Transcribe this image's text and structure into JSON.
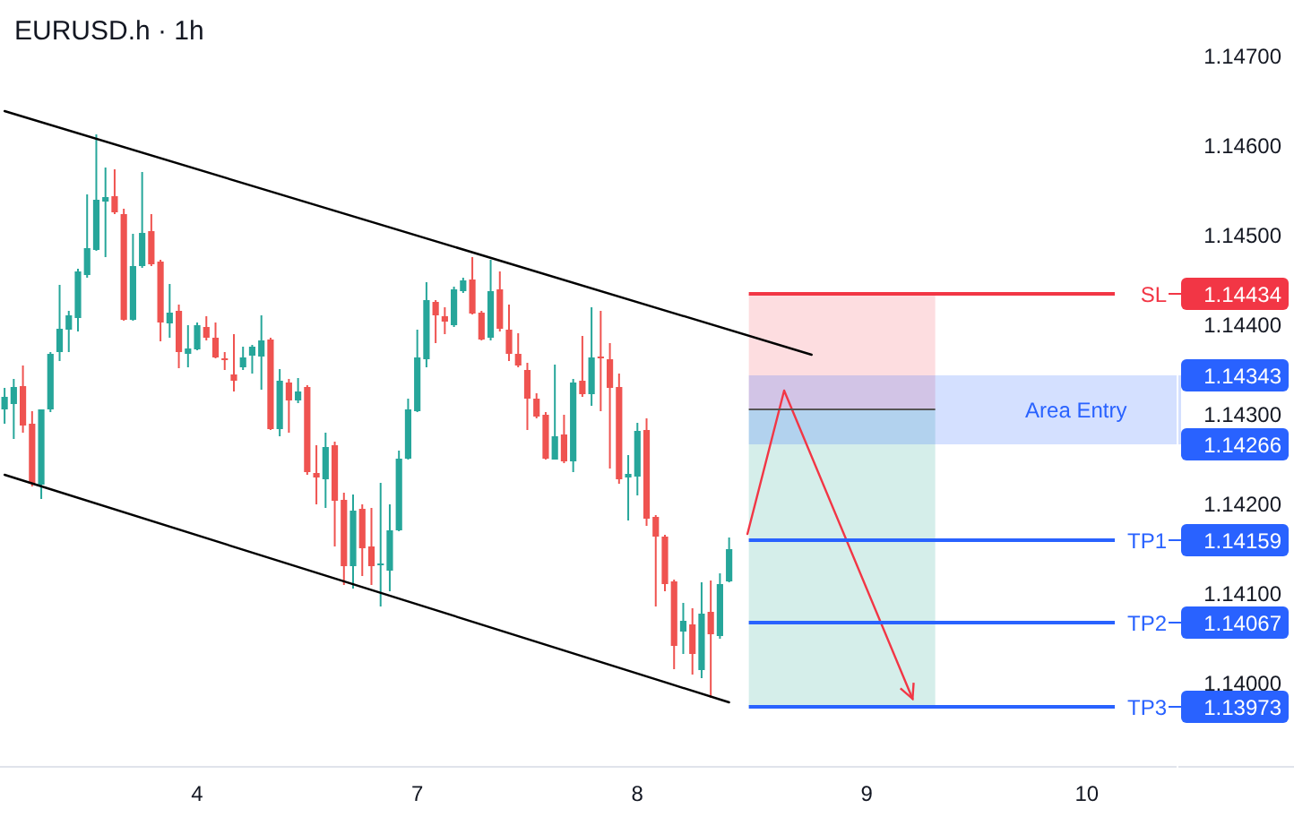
{
  "chart_data": {
    "type": "candlestick",
    "title": "EURUSD.h · 1h",
    "categories": [
      null,
      null,
      null,
      null,
      null,
      null,
      null,
      null,
      null,
      null,
      null,
      null,
      null,
      null,
      null,
      null,
      null,
      null,
      null,
      null,
      null,
      "4",
      null,
      null,
      null,
      null,
      null,
      null,
      null,
      null,
      null,
      null,
      null,
      null,
      null,
      null,
      null,
      null,
      null,
      null,
      null,
      null,
      null,
      null,
      null,
      "7",
      null,
      null,
      null,
      null,
      null,
      null,
      null,
      null,
      null,
      null,
      null,
      null,
      null,
      null,
      null,
      null,
      null,
      null,
      null,
      null,
      null,
      null,
      null,
      "8",
      null,
      null,
      null,
      null,
      null,
      null,
      null,
      null,
      null,
      null,
      null,
      null,
      null,
      null,
      null,
      null,
      null,
      null,
      null,
      null,
      null,
      null,
      null,
      null,
      "9",
      null,
      null,
      null,
      null,
      null,
      null,
      null,
      null,
      null,
      null,
      null,
      null,
      null,
      null,
      null,
      null,
      null,
      null,
      null,
      null,
      null,
      null,
      null,
      "10",
      null,
      null,
      null,
      null,
      null,
      null,
      null,
      null,
      null
    ],
    "ohlc": [
      [
        1.14305,
        1.14329,
        1.14289,
        1.14319
      ],
      [
        1.14311,
        1.14339,
        1.14272,
        1.1433
      ],
      [
        1.14331,
        1.14354,
        1.14279,
        1.14287
      ],
      [
        1.14289,
        1.14303,
        1.14219,
        1.14222
      ],
      [
        1.14221,
        1.14305,
        1.14205,
        1.14305
      ],
      [
        1.14305,
        1.14369,
        1.14302,
        1.14367
      ],
      [
        1.14369,
        1.14444,
        1.14359,
        1.14395
      ],
      [
        1.14394,
        1.14415,
        1.14369,
        1.1441
      ],
      [
        1.14407,
        1.14462,
        1.14392,
        1.14459
      ],
      [
        1.14455,
        1.14545,
        1.14452,
        1.14485
      ],
      [
        1.14483,
        1.14612,
        1.14482,
        1.14539
      ],
      [
        1.14537,
        1.14575,
        1.14475,
        1.14542
      ],
      [
        1.14543,
        1.14573,
        1.14523,
        1.14525
      ],
      [
        1.14523,
        1.14529,
        1.14404,
        1.14405
      ],
      [
        1.14405,
        1.14501,
        1.14404,
        1.14465
      ],
      [
        1.14465,
        1.1457,
        1.14463,
        1.14502
      ],
      [
        1.14504,
        1.14523,
        1.14465,
        1.14467
      ],
      [
        1.1447,
        1.14472,
        1.14381,
        1.14402
      ],
      [
        1.14401,
        1.14445,
        1.14385,
        1.14413
      ],
      [
        1.14415,
        1.14422,
        1.14351,
        1.14369
      ],
      [
        1.14367,
        1.14399,
        1.14352,
        1.14373
      ],
      [
        1.14372,
        1.14402,
        1.14371,
        1.14399
      ],
      [
        1.14397,
        1.14409,
        1.14382,
        1.14385
      ],
      [
        1.14385,
        1.14402,
        1.14362,
        1.14363
      ],
      [
        1.14362,
        1.14369,
        1.14349,
        1.1436
      ],
      [
        1.14344,
        1.14389,
        1.14325,
        1.14337
      ],
      [
        1.14352,
        1.14375,
        1.14349,
        1.14363
      ],
      [
        1.14365,
        1.14377,
        1.14345,
        1.14375
      ],
      [
        1.14364,
        1.1441,
        1.14327,
        1.14382
      ],
      [
        1.14383,
        1.14385,
        1.14282,
        1.14283
      ],
      [
        1.14283,
        1.1435,
        1.14275,
        1.14337
      ],
      [
        1.14335,
        1.14339,
        1.14279,
        1.14315
      ],
      [
        1.14315,
        1.1434,
        1.14312,
        1.14325
      ],
      [
        1.1433,
        1.14332,
        1.14232,
        1.14235
      ],
      [
        1.14234,
        1.14265,
        1.14199,
        1.14229
      ],
      [
        1.14227,
        1.14279,
        1.14195,
        1.14263
      ],
      [
        1.14265,
        1.14269,
        1.14152,
        1.14203
      ],
      [
        1.14204,
        1.14212,
        1.14109,
        1.1413
      ],
      [
        1.1413,
        1.1421,
        1.14105,
        1.14192
      ],
      [
        1.14194,
        1.14199,
        1.14119,
        1.1415
      ],
      [
        1.14152,
        1.14195,
        1.14109,
        1.1413
      ],
      [
        1.14131,
        1.14223,
        1.14085,
        1.14133
      ],
      [
        1.14125,
        1.14199,
        1.14102,
        1.1417
      ],
      [
        1.1417,
        1.14259,
        1.14169,
        1.1425
      ],
      [
        1.1425,
        1.14317,
        1.14249,
        1.14305
      ],
      [
        1.14303,
        1.14394,
        1.14302,
        1.14363
      ],
      [
        1.14361,
        1.14447,
        1.14352,
        1.14427
      ],
      [
        1.14425,
        1.14427,
        1.14379,
        1.1441
      ],
      [
        1.14409,
        1.14419,
        1.14389,
        1.14403
      ],
      [
        1.14399,
        1.14442,
        1.14397,
        1.14439
      ],
      [
        1.14437,
        1.14452,
        1.14435,
        1.14449
      ],
      [
        1.1445,
        1.14475,
        1.14411,
        1.14412
      ],
      [
        1.14413,
        1.14415,
        1.14382,
        1.14383
      ],
      [
        1.14385,
        1.14472,
        1.14382,
        1.14437
      ],
      [
        1.14439,
        1.14459,
        1.14392,
        1.14395
      ],
      [
        1.14394,
        1.14422,
        1.14359,
        1.14367
      ],
      [
        1.14367,
        1.1439,
        1.14352,
        1.14354
      ],
      [
        1.14349,
        1.14357,
        1.14282,
        1.14317
      ],
      [
        1.14317,
        1.14323,
        1.14295,
        1.14297
      ],
      [
        1.14299,
        1.14302,
        1.14249,
        1.1425
      ],
      [
        1.14249,
        1.14355,
        1.14249,
        1.14275
      ],
      [
        1.14277,
        1.14299,
        1.14245,
        1.14247
      ],
      [
        1.14247,
        1.14339,
        1.14235,
        1.14335
      ],
      [
        1.14337,
        1.14387,
        1.14319,
        1.14322
      ],
      [
        1.14322,
        1.14419,
        1.14309,
        1.14363
      ],
      [
        1.14364,
        1.14415,
        1.14303,
        1.14363
      ],
      [
        1.14361,
        1.14379,
        1.14239,
        1.14329
      ],
      [
        1.1433,
        1.14345,
        1.14222,
        1.14227
      ],
      [
        1.14229,
        1.14254,
        1.14181,
        1.14233
      ],
      [
        1.1423,
        1.1429,
        1.14209,
        1.14281
      ],
      [
        1.14282,
        1.14295,
        1.14175,
        1.14183
      ],
      [
        1.14185,
        1.14187,
        1.14085,
        1.14163
      ],
      [
        1.14163,
        1.14165,
        1.14102,
        1.1411
      ],
      [
        1.14113,
        1.14115,
        1.14015,
        1.14041
      ],
      [
        1.14057,
        1.14089,
        1.14032,
        1.14069
      ],
      [
        1.14065,
        1.14083,
        1.14009,
        1.14032
      ],
      [
        1.14014,
        1.14112,
        1.14005,
        1.14077
      ],
      [
        1.14079,
        1.14114,
        1.13983,
        1.14054
      ],
      [
        1.14052,
        1.14122,
        1.14049,
        1.1411
      ],
      [
        1.14113,
        1.14162,
        1.14112,
        1.14149
      ],
      null,
      null,
      null,
      null,
      null,
      null,
      null,
      null,
      null,
      null,
      null,
      null,
      null,
      null,
      null,
      null,
      null,
      null,
      null,
      null,
      null,
      null,
      null,
      null,
      null,
      null,
      null,
      null,
      null,
      null,
      null,
      null,
      null,
      null,
      null,
      null,
      null,
      null,
      null,
      null,
      null,
      null,
      null,
      null,
      null,
      null,
      null,
      null
    ],
    "colors": [
      "#26a69a",
      "#26a69a",
      "#ef5350",
      "#ef5350",
      "#26a69a",
      "#26a69a",
      "#26a69a",
      "#26a69a",
      "#26a69a",
      "#26a69a",
      "#26a69a",
      "#26a69a",
      "#ef5350",
      "#ef5350",
      "#26a69a",
      "#26a69a",
      "#ef5350",
      "#ef5350",
      "#26a69a",
      "#ef5350",
      "#26a69a",
      "#26a69a",
      "#ef5350",
      "#ef5350",
      "#ef5350",
      "#ef5350",
      "#26a69a",
      "#26a69a",
      "#26a69a",
      "#ef5350",
      "#26a69a",
      "#ef5350",
      "#26a69a",
      "#ef5350",
      "#ef5350",
      "#26a69a",
      "#ef5350",
      "#ef5350",
      "#26a69a",
      "#ef5350",
      "#ef5350",
      "#26a69a",
      "#26a69a",
      "#26a69a",
      "#26a69a",
      "#26a69a",
      "#26a69a",
      "#ef5350",
      "#ef5350",
      "#26a69a",
      "#26a69a",
      "#ef5350",
      "#ef5350",
      "#26a69a",
      "#ef5350",
      "#ef5350",
      "#ef5350",
      "#ef5350",
      "#ef5350",
      "#ef5350",
      "#26a69a",
      "#ef5350",
      "#26a69a",
      "#ef5350",
      "#26a69a",
      "#ef5350",
      "#ef5350",
      "#ef5350",
      "#26a69a",
      "#26a69a",
      "#ef5350",
      "#ef5350",
      "#ef5350",
      "#ef5350",
      "#26a69a",
      "#ef5350",
      "#26a69a",
      "#ef5350",
      "#26a69a",
      "#26a69a",
      null,
      null,
      null,
      null,
      null,
      null,
      null,
      null,
      null,
      null,
      null,
      null,
      null,
      null,
      null,
      null,
      null,
      null,
      null,
      null,
      null,
      null,
      null,
      null,
      null,
      null,
      null,
      null,
      null,
      null,
      null,
      null,
      null,
      null,
      null,
      null,
      null,
      null,
      null,
      null,
      null,
      null,
      null,
      null,
      null,
      null,
      null,
      null
    ],
    "series": [
      {
        "type": "line",
        "values": [
          1.14638,
          null,
          null,
          null,
          null,
          null,
          null,
          null,
          null,
          null,
          null,
          null,
          null,
          null,
          null,
          null,
          null,
          null,
          null,
          null,
          null,
          null,
          null,
          null,
          null,
          null,
          null,
          null,
          null,
          null,
          null,
          null,
          null,
          null,
          null,
          null,
          null,
          null,
          null,
          null,
          null,
          null,
          null,
          null,
          null,
          null,
          null,
          null,
          null,
          null,
          null,
          null,
          null,
          null,
          null,
          null,
          null,
          null,
          null,
          null,
          null,
          null,
          null,
          null,
          null,
          null,
          null,
          null,
          null,
          null,
          null,
          null,
          null,
          null,
          null,
          null,
          null,
          null,
          null,
          null,
          null,
          null,
          null,
          null,
          null,
          null,
          null,
          null,
          1.14366,
          null,
          null,
          null,
          null,
          null,
          null,
          null,
          null,
          null,
          null,
          null,
          null,
          null,
          null,
          null,
          null,
          null,
          null,
          null,
          null,
          null,
          null,
          null,
          null,
          null,
          null,
          null,
          null,
          null,
          null,
          null,
          null,
          null,
          null,
          null,
          null,
          null,
          null,
          null
        ],
        "color": "#000000"
      },
      {
        "type": "line",
        "values": [
          1.14232,
          null,
          null,
          null,
          null,
          null,
          null,
          null,
          null,
          null,
          null,
          null,
          null,
          null,
          null,
          null,
          null,
          null,
          null,
          null,
          null,
          null,
          null,
          null,
          null,
          null,
          null,
          null,
          null,
          null,
          null,
          null,
          null,
          null,
          null,
          null,
          null,
          null,
          null,
          null,
          null,
          null,
          null,
          null,
          null,
          null,
          null,
          null,
          null,
          null,
          null,
          null,
          null,
          null,
          null,
          null,
          null,
          null,
          null,
          null,
          null,
          null,
          null,
          null,
          null,
          null,
          null,
          null,
          null,
          null,
          null,
          null,
          null,
          null,
          null,
          null,
          null,
          null,
          null,
          1.13978,
          null,
          null,
          null,
          null,
          null,
          null,
          null,
          null,
          null,
          null,
          null,
          null,
          null,
          null,
          null,
          null,
          null,
          null,
          null,
          null,
          null,
          null,
          null,
          null,
          null,
          null,
          null,
          null,
          null,
          null,
          null,
          null,
          null,
          null,
          null,
          null,
          null,
          null,
          null,
          null,
          null,
          null,
          null,
          null,
          null,
          null,
          null,
          null
        ],
        "color": "#000000"
      },
      {
        "type": "line",
        "values": [
          null,
          null,
          null,
          null,
          null,
          null,
          null,
          null,
          null,
          null,
          null,
          null,
          null,
          null,
          null,
          null,
          null,
          null,
          null,
          null,
          null,
          null,
          null,
          null,
          null,
          null,
          null,
          null,
          null,
          null,
          null,
          null,
          null,
          null,
          null,
          null,
          null,
          null,
          null,
          null,
          null,
          null,
          null,
          null,
          null,
          null,
          null,
          null,
          null,
          null,
          null,
          null,
          null,
          null,
          null,
          null,
          null,
          null,
          null,
          null,
          null,
          null,
          null,
          null,
          null,
          null,
          null,
          null,
          null,
          null,
          null,
          null,
          null,
          null,
          null,
          null,
          null,
          null,
          null,
          null,
          null,
          1.14166,
          null,
          null,
          null,
          1.14326,
          null,
          null,
          null,
          null,
          null,
          null,
          null,
          null,
          null,
          null,
          null,
          null,
          null,
          1.13982,
          null,
          null,
          null,
          null,
          null,
          null,
          null,
          null,
          null,
          null,
          null,
          null,
          null,
          null,
          null,
          null,
          null,
          null,
          null,
          null,
          null,
          null,
          null,
          null,
          null,
          null,
          null,
          null
        ],
        "color": "#f23645"
      }
    ],
    "annotations": [
      "1.14434",
      "1.14159",
      "1.14067",
      "1.13973",
      "1.14343",
      "1.14266"
    ],
    "ylim": [
      1.13906,
      1.14762
    ],
    "yticks": [
      {
        "value": 1.14,
        "label": "1.14000"
      },
      {
        "value": 1.141,
        "label": "1.14100"
      },
      {
        "value": 1.142,
        "label": "1.14200"
      },
      {
        "value": 1.143,
        "label": "1.14300"
      },
      {
        "value": 1.144,
        "label": "1.14400"
      },
      {
        "value": 1.145,
        "label": "1.14500"
      },
      {
        "value": 1.146,
        "label": "1.14600"
      },
      {
        "value": 1.147,
        "label": "1.14700"
      }
    ],
    "ref_lines": [
      {
        "axis": "y",
        "value": 1.14434,
        "label": "SL",
        "color": "#f23645"
      },
      {
        "axis": "y",
        "value": 1.14159,
        "label": "TP1",
        "color": "#2962ff"
      },
      {
        "axis": "y",
        "value": 1.14067,
        "label": "TP2",
        "color": "#2962ff"
      },
      {
        "axis": "y",
        "value": 1.13973,
        "label": "TP3",
        "color": "#2962ff"
      },
      {
        "axis": "y",
        "value": 1.14305,
        "color": "#555555"
      }
    ],
    "bands": [
      {
        "axis": "y",
        "from": 1.14305,
        "to": 1.14434,
        "color": "#f23645"
      },
      {
        "axis": "y",
        "from": 1.13973,
        "to": 1.14305,
        "color": "#089981"
      },
      {
        "axis": "y",
        "from": 1.14266,
        "to": 1.14343,
        "label": "Area Entry",
        "color": "#2962ff"
      }
    ]
  }
}
